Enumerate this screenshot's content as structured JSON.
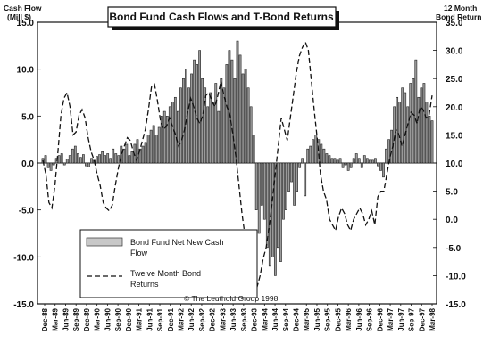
{
  "chart_data": {
    "type": "bar",
    "title": "Bond Fund Cash Flows and T-Bond Returns",
    "credit": "© The Leuthold Group 1998",
    "left_axis": {
      "title_line1": "Cash Flow",
      "title_line2": "(Mill $)",
      "range": [
        -15,
        15
      ],
      "ticks": [
        "15.0",
        "10.0",
        "5.0",
        "0.0",
        "-5.0",
        "-10.0",
        "-15.0"
      ]
    },
    "right_axis": {
      "title_line1": "12 Month",
      "title_line2": "Bond Return",
      "range": [
        -15,
        35
      ],
      "ticks": [
        "35.0",
        "30.0",
        "25.0",
        "20.0",
        "15.0",
        "10.0",
        "5.0",
        "0.0",
        "-5.0",
        "-10.0",
        "-15.0"
      ]
    },
    "x_labels": [
      "Dec-88",
      "Mar-89",
      "Jun-89",
      "Sep-89",
      "Dec-89",
      "Mar-90",
      "Jun-90",
      "Sep-90",
      "Dec-90",
      "Mar-91",
      "Jun-91",
      "Sep-91",
      "Dec-91",
      "Mar-92",
      "Jun-92",
      "Sep-92",
      "Dec-92",
      "Mar-93",
      "Jun-93",
      "Sep-93",
      "Dec-93",
      "Mar-94",
      "Jun-94",
      "Sep-94",
      "Dec-94",
      "Mar-95",
      "Jun-95",
      "Sep-95",
      "Dec-95",
      "Mar-96",
      "Jun-96",
      "Sep-96",
      "Dec-96",
      "Mar-97",
      "Jun-97",
      "Sep-97",
      "Dec-97",
      "Mar-98"
    ],
    "legend": {
      "placement": "bottom-left",
      "bars_label_line1": "Bond Fund Net New Cash",
      "bars_label_line2": "Flow",
      "line_label_line1": "Twelve Month Bond",
      "line_label_line2": "Returns"
    },
    "series": [
      {
        "name": "Bond Fund Net New Cash Flow",
        "axis": "left",
        "kind": "bar",
        "values": [
          0.5,
          0.8,
          -0.5,
          -0.8,
          -0.2,
          0.5,
          0.8,
          1.0,
          -0.2,
          0.4,
          0.8,
          1.5,
          1.8,
          1.0,
          0.6,
          0.9,
          -0.3,
          -0.4,
          0.5,
          0.3,
          0.7,
          0.9,
          1.2,
          0.8,
          1.0,
          0.5,
          1.5,
          1.0,
          0.8,
          1.8,
          1.5,
          2.0,
          0.8,
          1.2,
          2.0,
          2.5,
          1.5,
          1.8,
          2.2,
          3.0,
          3.5,
          4.0,
          3.0,
          3.8,
          5.0,
          5.5,
          5.0,
          6.0,
          6.5,
          7.0,
          5.5,
          8.0,
          9.0,
          10.0,
          8.0,
          9.5,
          11.0,
          10.5,
          12.0,
          9.0,
          8.0,
          6.0,
          7.5,
          6.5,
          8.5,
          5.5,
          9.0,
          8.0,
          10.5,
          12.0,
          11.0,
          9.0,
          13.0,
          11.5,
          9.5,
          10.0,
          8.0,
          6.0,
          3.0,
          -5.0,
          -7.5,
          -4.5,
          -6.0,
          -9.0,
          -11.0,
          -10.0,
          -12.0,
          -9.0,
          -10.5,
          -6.0,
          -5.0,
          -3.0,
          -2.0,
          -4.5,
          -3.0,
          -0.5,
          0.5,
          -3.5,
          1.5,
          1.8,
          2.5,
          3.0,
          2.5,
          2.0,
          1.5,
          1.0,
          0.8,
          0.5,
          0.5,
          0.3,
          0.5,
          -0.5,
          -0.2,
          -0.8,
          -0.5,
          0.5,
          1.0,
          0.5,
          -0.5,
          0.8,
          0.5,
          0.3,
          0.3,
          0.5,
          -0.3,
          -0.8,
          -1.5,
          1.5,
          2.5,
          3.5,
          6.0,
          7.0,
          6.5,
          8.0,
          7.5,
          6.0,
          8.5,
          9.0,
          11.0,
          7.0,
          8.0,
          8.5,
          6.5,
          5.0,
          4.5
        ]
      },
      {
        "name": "Twelve Month Bond Returns",
        "axis": "right",
        "kind": "line",
        "values": [
          10.5,
          8.0,
          3.0,
          2.0,
          6.0,
          12.0,
          18.5,
          21.5,
          22.5,
          20.0,
          15.0,
          15.5,
          18.5,
          19.5,
          18.0,
          14.5,
          12.0,
          10.5,
          8.0,
          6.0,
          3.0,
          2.0,
          1.5,
          2.5,
          6.0,
          9.0,
          11.5,
          13.0,
          14.5,
          14.0,
          12.0,
          10.5,
          12.0,
          14.0,
          16.0,
          19.5,
          23.5,
          24.0,
          21.0,
          17.5,
          16.0,
          16.5,
          18.0,
          16.5,
          15.0,
          13.0,
          14.0,
          16.0,
          19.0,
          21.5,
          20.0,
          18.0,
          17.0,
          18.5,
          22.0,
          22.5,
          21.0,
          20.0,
          22.0,
          24.5,
          22.0,
          20.0,
          18.5,
          15.0,
          11.0,
          6.0,
          1.0,
          -3.0,
          -6.0,
          -9.0,
          -11.5,
          -12.0,
          -10.0,
          -7.0,
          -5.0,
          -1.5,
          3.0,
          8.0,
          13.0,
          18.0,
          16.0,
          14.0,
          18.0,
          22.0,
          26.0,
          29.0,
          30.5,
          31.5,
          30.0,
          24.5,
          19.0,
          14.0,
          8.0,
          5.0,
          3.5,
          0.0,
          -1.0,
          -2.0,
          0.5,
          2.0,
          1.0,
          -1.0,
          -2.0,
          0.0,
          1.0,
          2.0,
          1.0,
          -1.0,
          0.0,
          1.5,
          -1.0,
          4.0,
          5.0,
          5.0,
          8.0,
          11.0,
          13.0,
          16.0,
          15.0,
          13.0,
          15.0,
          17.0,
          19.0,
          18.5,
          17.0,
          20.0,
          19.5,
          18.0,
          18.5,
          22.0
        ]
      }
    ]
  }
}
